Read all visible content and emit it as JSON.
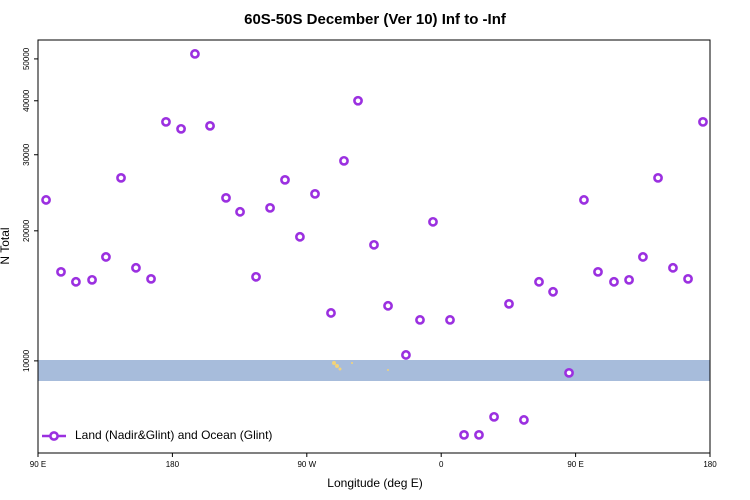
{
  "chart_data": {
    "type": "scatter",
    "title": "60S-50S December (Ver 10)   Inf to -Inf",
    "x_label": "Longitude (deg E)",
    "y_label": "N Total",
    "xlim": [
      90,
      540
    ],
    "xticks": [
      {
        "value": 90,
        "label": "90 E"
      },
      {
        "value": 180,
        "label": "180"
      },
      {
        "value": 270,
        "label": "90 W"
      },
      {
        "value": 360,
        "label": "0"
      },
      {
        "value": 450,
        "label": "90 E"
      },
      {
        "value": 540,
        "label": "180"
      }
    ],
    "ylim": [
      6120,
      55300
    ],
    "ylog": true,
    "yticks": [
      10000,
      20000,
      30000,
      40000,
      50000
    ],
    "legend": "bottom-left",
    "series": [
      {
        "name": "Land (Nadir&Glint) and Ocean (Glint)",
        "color": "#9b30e0",
        "x": [
          95.4,
          105.4,
          115.4,
          126.2,
          135.5,
          145.6,
          155.6,
          165.7,
          175.7,
          185.8,
          195.1,
          205.2,
          215.9,
          225.3,
          236.0,
          245.4,
          255.4,
          265.4,
          275.5,
          286.2,
          294.9,
          304.3,
          315.0,
          324.4,
          336.4,
          345.8,
          354.5,
          365.9,
          375.3,
          385.3,
          395.4,
          405.4,
          415.4,
          425.5,
          434.9,
          445.6,
          455.6,
          465.0,
          475.7,
          485.8,
          495.1,
          505.2,
          515.2,
          525.3,
          535.3
        ],
        "values": [
          23580,
          16070,
          15240,
          15400,
          17400,
          26520,
          16420,
          15480,
          35740,
          34440,
          51350,
          34990,
          23840,
          22130,
          15650,
          22600,
          26240,
          19370,
          24350,
          12910,
          29040,
          40000,
          18560,
          13410,
          10320,
          12440,
          20980,
          12440,
          6740,
          6740,
          7420,
          13550,
          7300,
          15240,
          14450,
          9380,
          23580,
          16070,
          15240,
          15400,
          17400,
          26520,
          16420,
          15480,
          35740
        ]
      }
    ]
  }
}
